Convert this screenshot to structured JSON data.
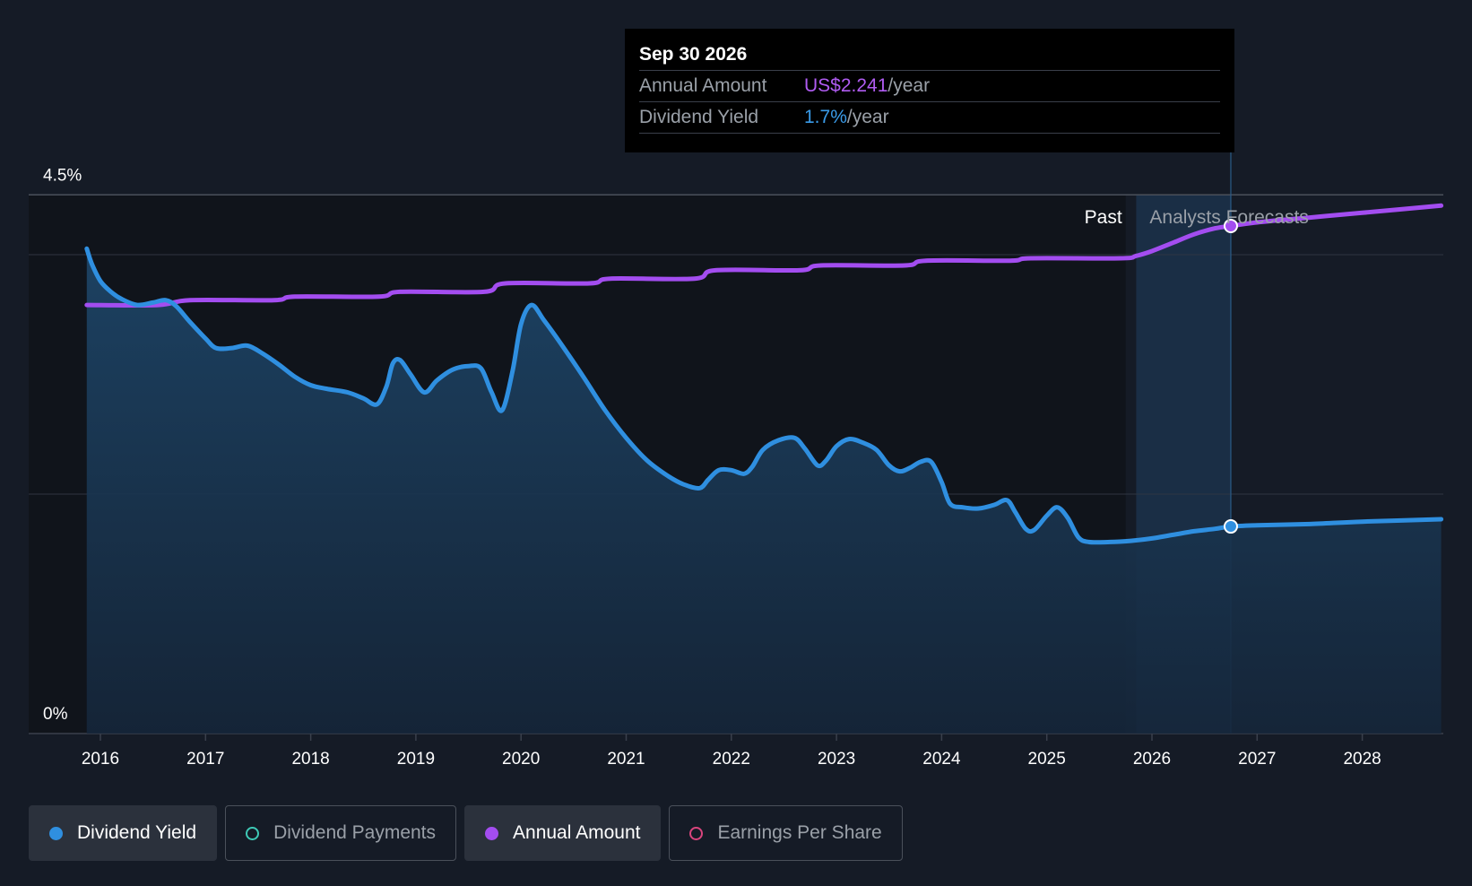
{
  "colors": {
    "background": "#151b26",
    "past_shade": "#10141b",
    "forecast_band": "#1c3650",
    "dividend_yield": "#2f8fe0",
    "annual_amount": "#a34df0",
    "dividend_payments": "#3ec9b6",
    "earnings_per_share": "#d9457d",
    "grid": "#2f3542",
    "axis": "#3a404c"
  },
  "tooltip": {
    "date": "Sep 30 2026",
    "rows": [
      {
        "label": "Annual Amount",
        "value": "US$2.241",
        "unit": "/year"
      },
      {
        "label": "Dividend Yield",
        "value": "1.7%",
        "unit": "/year"
      }
    ]
  },
  "chart_data": {
    "type": "line",
    "title": "",
    "xlabel": "",
    "ylabel": "",
    "y_axis_labels": [
      "4.5%",
      "0%"
    ],
    "ylim": [
      0,
      4.5
    ],
    "xlim": [
      2015.33,
      2028.75
    ],
    "x_ticks": [
      2016,
      2017,
      2018,
      2019,
      2020,
      2021,
      2022,
      2023,
      2024,
      2025,
      2026,
      2027,
      2028
    ],
    "x_tick_labels": [
      "2016",
      "2017",
      "2018",
      "2019",
      "2020",
      "2021",
      "2022",
      "2023",
      "2024",
      "2025",
      "2026",
      "2027",
      "2028"
    ],
    "gridlines_y": [
      4.5,
      4.0,
      2.0
    ],
    "past_label": "Past",
    "forecast_label": "Analysts Forecasts",
    "past_end": 2025.75,
    "forecast_band": [
      2025.85,
      2026.75
    ],
    "highlight_x": 2026.75,
    "annual_amount_scale_note": "plotted on secondary scale matching yield axis",
    "series": [
      {
        "name": "Dividend Yield",
        "unit": "%",
        "points": [
          [
            2015.87,
            4.05
          ],
          [
            2015.92,
            3.92
          ],
          [
            2016.0,
            3.78
          ],
          [
            2016.1,
            3.69
          ],
          [
            2016.2,
            3.63
          ],
          [
            2016.35,
            3.58
          ],
          [
            2016.5,
            3.6
          ],
          [
            2016.62,
            3.62
          ],
          [
            2016.72,
            3.57
          ],
          [
            2016.85,
            3.44
          ],
          [
            2017.0,
            3.3
          ],
          [
            2017.1,
            3.22
          ],
          [
            2017.25,
            3.22
          ],
          [
            2017.4,
            3.24
          ],
          [
            2017.55,
            3.17
          ],
          [
            2017.7,
            3.08
          ],
          [
            2017.85,
            2.98
          ],
          [
            2018.0,
            2.91
          ],
          [
            2018.15,
            2.88
          ],
          [
            2018.35,
            2.85
          ],
          [
            2018.5,
            2.8
          ],
          [
            2018.63,
            2.75
          ],
          [
            2018.72,
            2.9
          ],
          [
            2018.78,
            3.09
          ],
          [
            2018.85,
            3.12
          ],
          [
            2018.95,
            3.0
          ],
          [
            2019.08,
            2.85
          ],
          [
            2019.2,
            2.95
          ],
          [
            2019.35,
            3.04
          ],
          [
            2019.5,
            3.07
          ],
          [
            2019.62,
            3.05
          ],
          [
            2019.72,
            2.85
          ],
          [
            2019.82,
            2.7
          ],
          [
            2019.92,
            3.03
          ],
          [
            2020.0,
            3.42
          ],
          [
            2020.1,
            3.58
          ],
          [
            2020.22,
            3.45
          ],
          [
            2020.4,
            3.23
          ],
          [
            2020.6,
            2.97
          ],
          [
            2020.8,
            2.7
          ],
          [
            2021.0,
            2.47
          ],
          [
            2021.2,
            2.28
          ],
          [
            2021.4,
            2.15
          ],
          [
            2021.55,
            2.08
          ],
          [
            2021.7,
            2.05
          ],
          [
            2021.78,
            2.12
          ],
          [
            2021.88,
            2.2
          ],
          [
            2022.0,
            2.2
          ],
          [
            2022.12,
            2.17
          ],
          [
            2022.2,
            2.23
          ],
          [
            2022.3,
            2.37
          ],
          [
            2022.45,
            2.45
          ],
          [
            2022.6,
            2.47
          ],
          [
            2022.7,
            2.38
          ],
          [
            2022.82,
            2.24
          ],
          [
            2022.9,
            2.28
          ],
          [
            2023.0,
            2.4
          ],
          [
            2023.12,
            2.46
          ],
          [
            2023.25,
            2.43
          ],
          [
            2023.38,
            2.37
          ],
          [
            2023.5,
            2.24
          ],
          [
            2023.6,
            2.19
          ],
          [
            2023.7,
            2.22
          ],
          [
            2023.8,
            2.27
          ],
          [
            2023.9,
            2.27
          ],
          [
            2024.0,
            2.1
          ],
          [
            2024.08,
            1.92
          ],
          [
            2024.2,
            1.89
          ],
          [
            2024.35,
            1.88
          ],
          [
            2024.5,
            1.91
          ],
          [
            2024.62,
            1.95
          ],
          [
            2024.7,
            1.85
          ],
          [
            2024.8,
            1.71
          ],
          [
            2024.88,
            1.7
          ],
          [
            2025.0,
            1.82
          ],
          [
            2025.1,
            1.89
          ],
          [
            2025.2,
            1.8
          ],
          [
            2025.3,
            1.64
          ],
          [
            2025.4,
            1.6
          ],
          [
            2025.6,
            1.6
          ],
          [
            2025.8,
            1.61
          ],
          [
            2026.0,
            1.63
          ],
          [
            2026.2,
            1.66
          ],
          [
            2026.4,
            1.69
          ],
          [
            2026.6,
            1.71
          ],
          [
            2026.75,
            1.73
          ],
          [
            2027.0,
            1.74
          ],
          [
            2027.5,
            1.75
          ],
          [
            2028.0,
            1.77
          ],
          [
            2028.75,
            1.79
          ]
        ]
      },
      {
        "name": "Annual Amount",
        "unit": "US$/year",
        "points": [
          [
            2015.87,
            3.58
          ],
          [
            2016.55,
            3.58
          ],
          [
            2016.85,
            3.62
          ],
          [
            2017.65,
            3.62
          ],
          [
            2017.85,
            3.65
          ],
          [
            2018.65,
            3.65
          ],
          [
            2018.85,
            3.69
          ],
          [
            2019.65,
            3.69
          ],
          [
            2019.85,
            3.76
          ],
          [
            2020.65,
            3.76
          ],
          [
            2020.85,
            3.8
          ],
          [
            2021.65,
            3.8
          ],
          [
            2021.85,
            3.87
          ],
          [
            2022.65,
            3.87
          ],
          [
            2022.85,
            3.91
          ],
          [
            2023.65,
            3.91
          ],
          [
            2023.85,
            3.95
          ],
          [
            2024.65,
            3.95
          ],
          [
            2024.85,
            3.97
          ],
          [
            2025.7,
            3.97
          ],
          [
            2025.85,
            3.99
          ],
          [
            2026.0,
            4.03
          ],
          [
            2026.2,
            4.1
          ],
          [
            2026.4,
            4.17
          ],
          [
            2026.6,
            4.22
          ],
          [
            2026.75,
            4.24
          ],
          [
            2027.0,
            4.27
          ],
          [
            2027.5,
            4.31
          ],
          [
            2028.0,
            4.35
          ],
          [
            2028.75,
            4.41
          ]
        ]
      }
    ],
    "legend": {
      "placement": "bottom-left",
      "entries": [
        {
          "label": "Dividend Yield",
          "active": true,
          "color": "#2f8fe0",
          "filled": true
        },
        {
          "label": "Dividend Payments",
          "active": false,
          "color": "#3ec9b6",
          "filled": false
        },
        {
          "label": "Annual Amount",
          "active": true,
          "color": "#a34df0",
          "filled": true
        },
        {
          "label": "Earnings Per Share",
          "active": false,
          "color": "#d9457d",
          "filled": false
        }
      ]
    }
  }
}
